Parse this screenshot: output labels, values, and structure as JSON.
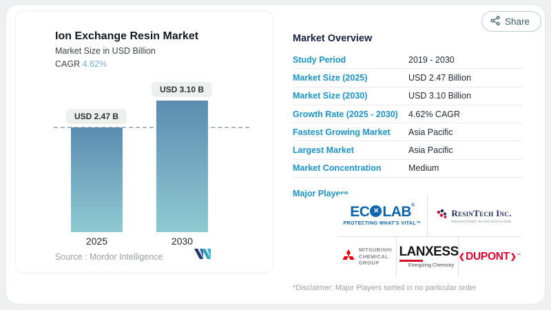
{
  "header": {
    "share_label": "Share"
  },
  "chart_panel": {
    "title": "Ion Exchange Resin Market",
    "subtitle": "Market Size in USD Billion",
    "cagr_label": "CAGR",
    "cagr_value": "4.62%",
    "bars": [
      {
        "year": "2025",
        "pill": "USD 2.47 B"
      },
      {
        "year": "2030",
        "pill": "USD 3.10 B"
      }
    ],
    "source_label": "Source :",
    "source_value": "Mordor Intelligence"
  },
  "chart_data": {
    "type": "bar",
    "title": "Ion Exchange Resin Market",
    "ylabel": "Market Size in USD Billion",
    "categories": [
      "2025",
      "2030"
    ],
    "values": [
      2.47,
      3.1
    ],
    "data_labels": [
      "USD 2.47 B",
      "USD 3.10 B"
    ],
    "cagr": "4.62%",
    "ylim": [
      0,
      3.5
    ],
    "grid": false,
    "legend": "none",
    "reference_line": 2.47
  },
  "overview": {
    "title": "Market Overview",
    "rows": [
      {
        "label": "Study Period",
        "value": "2019 - 2030"
      },
      {
        "label": "Market Size (2025)",
        "value": "USD 2.47 Billion"
      },
      {
        "label": "Market Size (2030)",
        "value": "USD 3.10 Billion"
      },
      {
        "label": "Growth Rate (2025 - 2030)",
        "value": "4.62% CAGR"
      },
      {
        "label": "Fastest Growing Market",
        "value": "Asia Pacific"
      },
      {
        "label": "Largest Market",
        "value": "Asia Pacific"
      },
      {
        "label": "Market Concentration",
        "value": "Medium"
      }
    ],
    "major_players_label": "Major Players",
    "disclaimer": "*Disclaimer: Major Players sorted in no particular order"
  },
  "players": {
    "ecolab": {
      "name_left": "EC",
      "o_glyph": "✕",
      "name_right": "LAB",
      "reg": "®",
      "tagline": "PROTECTING WHAT'S VITAL™"
    },
    "resintech": {
      "name": "ResinTech Inc.",
      "tagline": "INNOVATIONS IN ION EXCHANGE"
    },
    "mitsubishi": {
      "line1": "MITSUBISHI",
      "line2": "CHEMICAL",
      "line3": "GROUP"
    },
    "lanxess": {
      "name": "LANXESS",
      "tagline": "Energizing Chemistry"
    },
    "dupont": {
      "bracket_left": "❮",
      "name": "DUPONT",
      "bracket_right": "❯",
      "tm": "™"
    }
  },
  "colors": {
    "accent_teal": "#1b93c6",
    "navy_text": "#1d2433",
    "bar_gradient_top": "#5b8cb0",
    "bar_gradient_bottom": "#8fcad2",
    "pill_bg": "#edf1ee",
    "ecolab_blue": "#0c63ae",
    "resintech_navy": "#1d2a5a",
    "mitsubishi_red": "#e60012",
    "lanxess_red": "#d40f2e",
    "dupont_red": "#e4002b"
  }
}
